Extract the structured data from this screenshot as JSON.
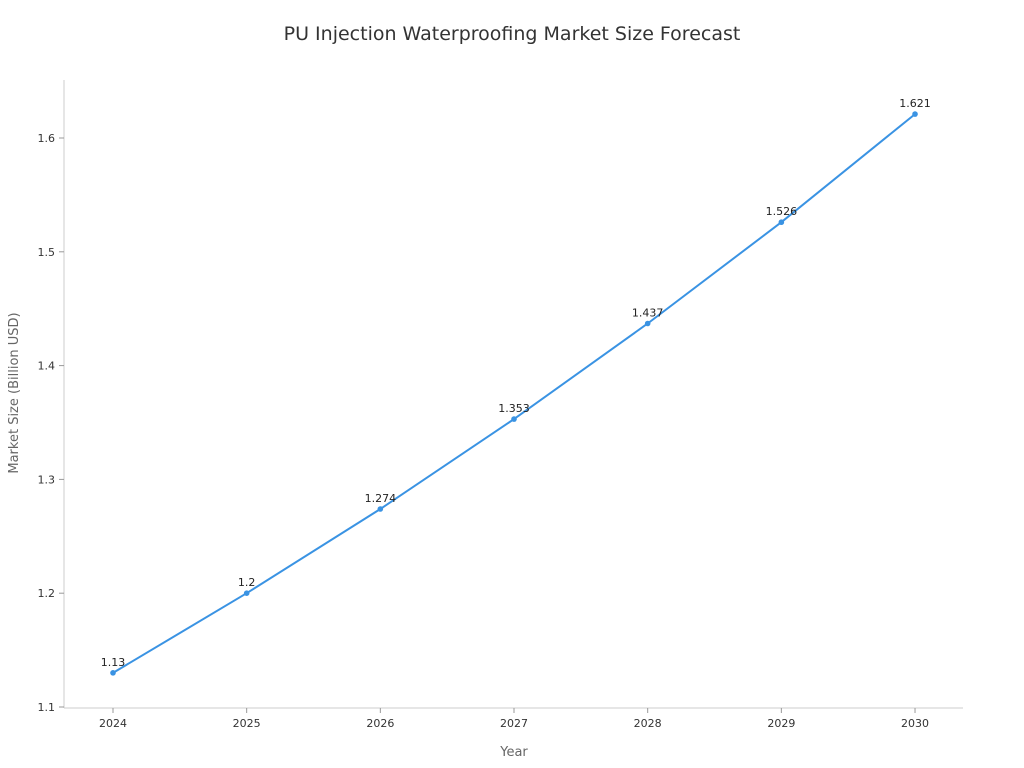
{
  "chart_data": {
    "type": "line",
    "title": "PU Injection Waterproofing Market Size Forecast",
    "xlabel": "Year",
    "ylabel": "Market Size (Billion USD)",
    "x": [
      "2024",
      "2025",
      "2026",
      "2027",
      "2028",
      "2029",
      "2030"
    ],
    "series": [
      {
        "values": [
          1.13,
          1.2,
          1.274,
          1.353,
          1.437,
          1.526,
          1.621
        ],
        "labels": [
          "1.13",
          "1.2",
          "1.274",
          "1.353",
          "1.437",
          "1.526",
          "1.621"
        ]
      }
    ],
    "yticks": [
      "1.1",
      "1.2",
      "1.3",
      "1.4",
      "1.5",
      "1.6"
    ],
    "ylim": [
      1.1,
      1.65
    ],
    "grid": false,
    "color": "#3a93e3"
  }
}
